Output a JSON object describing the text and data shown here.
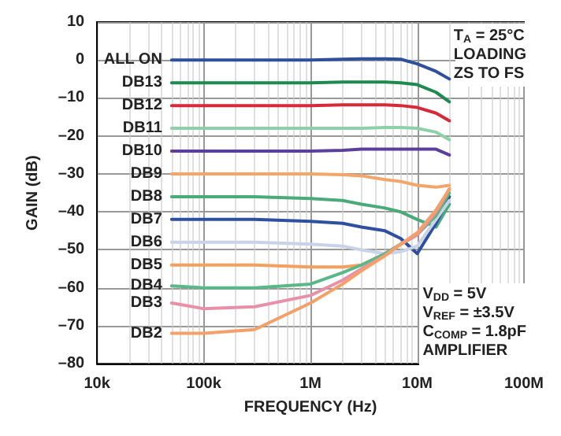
{
  "chart_data": {
    "type": "line",
    "xlabel": "FREQUENCY (Hz)",
    "ylabel": "GAIN (dB)",
    "log": "x",
    "grid": true,
    "legend": false,
    "marker": "none",
    "line_style": "solid",
    "xlim": [
      10000,
      100000000
    ],
    "xticks": [
      {
        "value": 10000,
        "label": "10k"
      },
      {
        "value": 100000,
        "label": "100k"
      },
      {
        "value": 1000000,
        "label": "1M"
      },
      {
        "value": 10000000,
        "label": "10M"
      },
      {
        "value": 100000000,
        "label": "100M"
      }
    ],
    "ylim": [
      -80,
      10
    ],
    "yticks": [
      {
        "value": -80,
        "label": "–80"
      },
      {
        "value": -70,
        "label": "–70"
      },
      {
        "value": -60,
        "label": "–60"
      },
      {
        "value": -50,
        "label": "–50"
      },
      {
        "value": -40,
        "label": "–40"
      },
      {
        "value": -30,
        "label": "–30"
      },
      {
        "value": -20,
        "label": "–20"
      },
      {
        "value": -10,
        "label": "–10"
      },
      0,
      10
    ],
    "x": [
      50000,
      100000,
      300000,
      1000000,
      2000000,
      3000000,
      5000000,
      7000000,
      10000000,
      15000000,
      20000000
    ],
    "series": [
      {
        "name": "ALL ON",
        "color": "#2e4e9e",
        "values": [
          0,
          0,
          0,
          0,
          0.2,
          0.3,
          0.3,
          0.2,
          -1,
          -3,
          -5
        ]
      },
      {
        "name": "DB13",
        "color": "#1e8a50",
        "values": [
          -6,
          -6,
          -6,
          -6,
          -5.8,
          -5.8,
          -5.8,
          -6,
          -6.5,
          -8.5,
          -11
        ]
      },
      {
        "name": "DB12",
        "color": "#d62a3a",
        "values": [
          -12,
          -12,
          -12,
          -12,
          -11.8,
          -11.8,
          -11.8,
          -12,
          -12.5,
          -14,
          -16
        ]
      },
      {
        "name": "DB11",
        "color": "#8fd0a8",
        "values": [
          -18,
          -18,
          -18,
          -18,
          -18,
          -18,
          -17.8,
          -17.8,
          -18,
          -19,
          -21
        ]
      },
      {
        "name": "DB10",
        "color": "#5b3f9a",
        "values": [
          -24,
          -24,
          -24,
          -24,
          -23.8,
          -23.5,
          -23.5,
          -23.5,
          -23.5,
          -23.5,
          -25
        ]
      },
      {
        "name": "DB9",
        "color": "#f4a56a",
        "values": [
          -30,
          -30,
          -30,
          -30,
          -30.2,
          -30.5,
          -31.5,
          -32,
          -33,
          -33.5,
          -33
        ]
      },
      {
        "name": "DB8",
        "color": "#4aaa7a",
        "values": [
          -36,
          -36,
          -36,
          -36.5,
          -37,
          -38,
          -39,
          -40,
          -42,
          -44,
          -38
        ]
      },
      {
        "name": "DB7",
        "color": "#2f4fa0",
        "values": [
          -42,
          -42,
          -42,
          -42.5,
          -43,
          -44,
          -45,
          -47,
          -51,
          -43,
          -36
        ]
      },
      {
        "name": "DB6",
        "color": "#c8d2e8",
        "values": [
          -48,
          -48,
          -48,
          -48.5,
          -49,
          -50,
          -51,
          -50.5,
          -49,
          -42,
          -37
        ]
      },
      {
        "name": "DB5",
        "color": "#f4a060",
        "values": [
          -54,
          -54,
          -54,
          -54.5,
          -54.5,
          -54,
          -51,
          -48.5,
          -46,
          -40,
          -34
        ]
      },
      {
        "name": "DB4",
        "color": "#5ab888",
        "values": [
          -59.5,
          -60,
          -60,
          -59,
          -56,
          -54,
          -51,
          -48.5,
          -46,
          -41,
          -35
        ]
      },
      {
        "name": "DB3",
        "color": "#e890a8",
        "values": [
          -64,
          -65.5,
          -65,
          -62,
          -58,
          -55,
          -51.5,
          -48.5,
          -46,
          -40,
          -34
        ]
      },
      {
        "name": "DB2",
        "color": "#f5a06a",
        "values": [
          -72,
          -72,
          -71,
          -64,
          -59,
          -55.5,
          -51.5,
          -48.5,
          -45.5,
          -39.5,
          -34
        ]
      }
    ],
    "annotations": [
      "T$_{A}$ = 25°C",
      "LOADING",
      "ZS TO FS",
      "V$_{DD}$ = 5V",
      "V$_{REF}$ = ±3.5V",
      "C$_{COMP}$ = 1.8pF",
      "AMPLIFIER"
    ]
  }
}
